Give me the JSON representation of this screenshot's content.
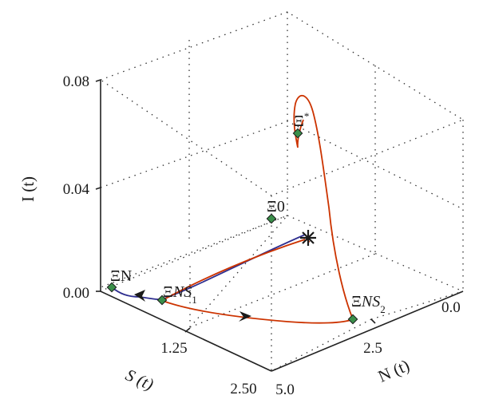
{
  "chart_data": {
    "type": "3d-phase-portrait",
    "axes": {
      "z": {
        "label": "I (t)",
        "ticks": [
          "0.00",
          "0.04",
          "0.08"
        ],
        "range": [
          0,
          0.08
        ]
      },
      "s": {
        "label": "S (t)",
        "ticks": [
          "1.25",
          "2.50"
        ],
        "range": [
          0,
          2.5
        ]
      },
      "n": {
        "label": "N (t)",
        "ticks": [
          "0.0",
          "2.5",
          "5.0"
        ],
        "range": [
          0,
          5
        ]
      }
    },
    "grid": true,
    "equilibria": [
      {
        "id": "E_N",
        "label": "Ξ",
        "suffix": "N",
        "sub": ""
      },
      {
        "id": "E_NS1",
        "label": "Ξ",
        "suffix": "NS",
        "sub": "1"
      },
      {
        "id": "E_NS2",
        "label": "Ξ",
        "suffix": "NS",
        "sub": "2"
      },
      {
        "id": "E_0",
        "label": "Ξ",
        "suffix": "0",
        "sub": ""
      },
      {
        "id": "E_star",
        "label": "Ξ",
        "suffix": "*",
        "sub": ""
      }
    ],
    "series": [
      {
        "color": "#2e2e8f"
      },
      {
        "color": "#cc3300"
      }
    ],
    "marker_color": "#3a8f4a"
  }
}
